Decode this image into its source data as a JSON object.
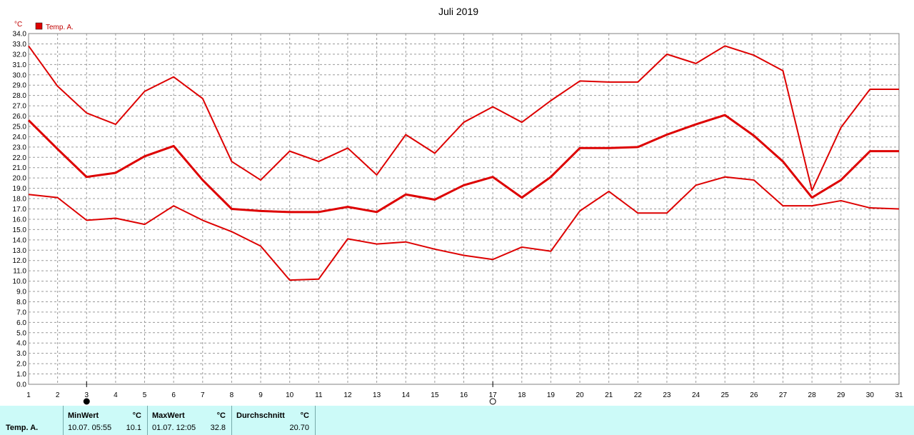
{
  "chart_data": {
    "type": "line",
    "title": "Juli 2019",
    "ylabel": "°C",
    "legend": "Temp. A.",
    "legend_placement": "top-left",
    "color": "#dd0000",
    "grid": true,
    "x": [
      1,
      2,
      3,
      4,
      5,
      6,
      7,
      8,
      9,
      10,
      11,
      12,
      13,
      14,
      15,
      16,
      17,
      18,
      19,
      20,
      21,
      22,
      23,
      24,
      25,
      26,
      27,
      28,
      29,
      30,
      31
    ],
    "xlim": [
      1,
      31
    ],
    "ylim": [
      0,
      34
    ],
    "ystep": 1,
    "series": [
      {
        "role": "max",
        "values": [
          32.8,
          28.9,
          26.3,
          25.2,
          28.4,
          29.8,
          27.7,
          21.6,
          19.8,
          22.6,
          21.6,
          22.9,
          20.3,
          24.2,
          22.4,
          25.4,
          26.9,
          25.4,
          27.5,
          29.4,
          29.3,
          29.3,
          32.0,
          31.1,
          32.8,
          31.9,
          30.4,
          18.8,
          24.9,
          28.6,
          28.6
        ]
      },
      {
        "role": "mean",
        "values": [
          25.6,
          22.8,
          20.1,
          20.5,
          22.1,
          23.1,
          19.8,
          17.0,
          16.8,
          16.7,
          16.7,
          17.2,
          16.7,
          18.4,
          17.9,
          19.3,
          20.1,
          18.1,
          20.1,
          22.9,
          22.9,
          23.0,
          24.2,
          25.2,
          26.1,
          24.1,
          21.6,
          18.1,
          19.8,
          22.6,
          22.6
        ]
      },
      {
        "role": "min",
        "values": [
          18.4,
          18.1,
          15.9,
          16.1,
          15.5,
          17.3,
          15.9,
          14.8,
          13.4,
          10.1,
          10.2,
          14.1,
          13.6,
          13.8,
          13.1,
          12.5,
          12.1,
          13.3,
          12.9,
          16.8,
          18.7,
          16.6,
          16.6,
          19.3,
          20.1,
          19.8,
          17.3,
          17.3,
          17.8,
          17.1,
          17.0
        ]
      }
    ],
    "markers": [
      {
        "x": 3,
        "symbol": "filled-circle"
      },
      {
        "x": 17,
        "symbol": "open-circle"
      }
    ]
  },
  "stats_table": {
    "row_label": "Temp. A.",
    "min": {
      "header": "MinWert",
      "unit": "°C",
      "datetime": "10.07.  05:55",
      "value": "10.1"
    },
    "max": {
      "header": "MaxWert",
      "unit": "°C",
      "datetime": "01.07.  12:05",
      "value": "32.8"
    },
    "avg": {
      "header": "Durchschnitt",
      "unit": "°C",
      "value": "20.70"
    }
  }
}
